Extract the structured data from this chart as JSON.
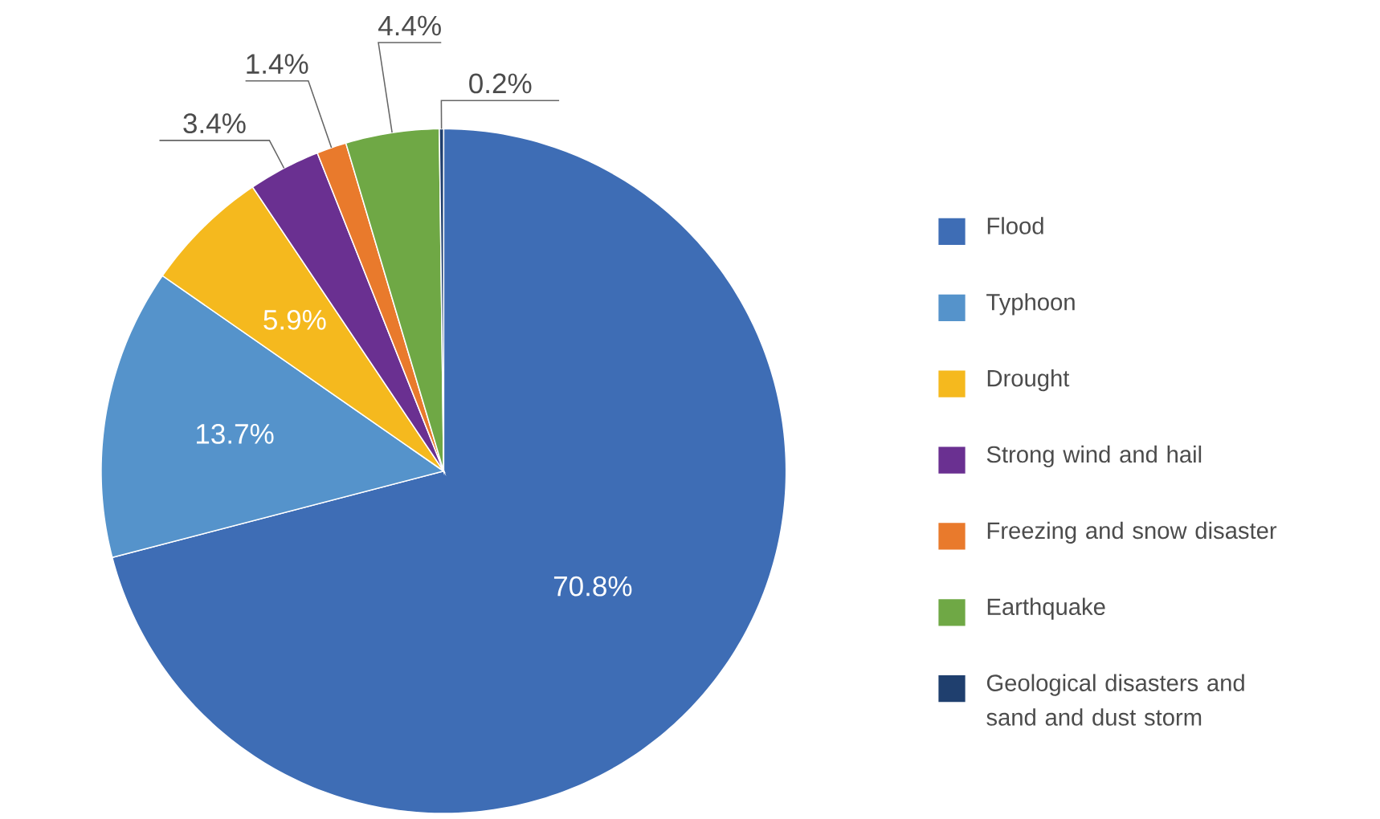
{
  "chart_data": {
    "type": "pie",
    "categories": [
      "Flood",
      "Typhoon",
      "Drought",
      "Strong wind and hail",
      "Freezing and snow disaster",
      "Earthquake",
      "Geological disasters and sand and dust storm"
    ],
    "values": [
      70.8,
      13.7,
      5.9,
      3.4,
      1.4,
      4.4,
      0.2
    ],
    "value_labels": [
      "70.8%",
      "13.7%",
      "5.9%",
      "3.4%",
      "1.4%",
      "4.4%",
      "0.2%"
    ],
    "colors": [
      "#3e6db5",
      "#5593cb",
      "#f5b91e",
      "#6a3091",
      "#e97a2c",
      "#6fa845",
      "#1f3f6e"
    ],
    "legend": "right"
  }
}
